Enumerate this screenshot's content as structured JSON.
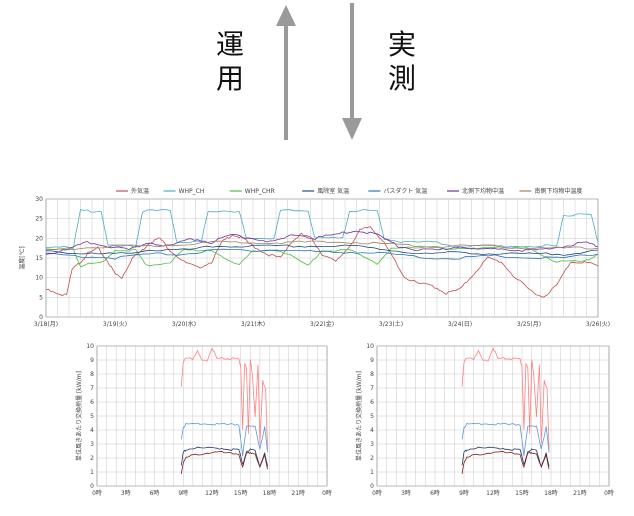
{
  "labels": {
    "unyo": "運用",
    "jissoku": "実測"
  },
  "colors": {
    "arrow": "#9a9a9a",
    "grid": "#c8c8c8",
    "axis": "#888888",
    "outdoor": "#c0504d",
    "whp_ch": "#4bacc6",
    "whp_chr": "#4bbf3f",
    "fuyo": "#1f4e79",
    "passduct": "#2e75b6",
    "north": "#7030a0",
    "south": "#a08060",
    "red_line": "#ff8080",
    "blue_line": "#5b9bd5",
    "dark_blue_line": "#1f3864",
    "dark_red_line": "#7f1d1d"
  },
  "chart_data": [
    {
      "type": "line",
      "title": "",
      "ylabel": "温度[℃]",
      "ylim": [
        0,
        30
      ],
      "yticks": [
        0,
        5,
        10,
        15,
        20,
        25,
        30
      ],
      "xlim": [
        0,
        8
      ],
      "x_tick_labels": [
        "3/18(月)",
        "3/19(火)",
        "3/20(水)",
        "3/21(木)",
        "3/22(金)",
        "3/23(土)",
        "3/24(日)",
        "3/25(月)",
        "3/26(火)"
      ],
      "legend_position": "top",
      "series": [
        {
          "name": "外気温",
          "color_key": "outdoor",
          "x": [
            0,
            0.2,
            0.3,
            0.38,
            0.5,
            0.6,
            0.75,
            0.9,
            1.0,
            1.1,
            1.25,
            1.4,
            1.5,
            1.65,
            1.8,
            2.0,
            2.2,
            2.4,
            2.55,
            2.7,
            2.85,
            3.0,
            3.2,
            3.4,
            3.55,
            3.7,
            3.85,
            4.0,
            4.2,
            4.4,
            4.55,
            4.7,
            4.85,
            5.0,
            5.2,
            5.4,
            5.6,
            5.8,
            6.0,
            6.2,
            6.4,
            6.6,
            6.8,
            7.0,
            7.2,
            7.4,
            7.6,
            7.8,
            8.0
          ],
          "y": [
            7,
            5.5,
            6,
            12,
            14,
            16,
            17.5,
            14,
            11,
            10,
            15,
            17,
            19,
            20,
            17,
            14,
            12.5,
            14,
            19,
            21,
            20,
            18,
            16,
            15,
            19,
            21,
            20,
            16,
            14,
            18,
            22,
            23,
            20,
            16,
            10,
            8.5,
            8,
            6,
            7,
            11,
            15,
            14,
            10,
            7,
            5,
            8,
            14,
            14,
            13
          ]
        },
        {
          "name": "WHP_CH",
          "color_key": "whp_ch",
          "x": [
            0,
            0.4,
            0.5,
            0.8,
            0.9,
            1.3,
            1.4,
            1.8,
            1.9,
            2.25,
            2.35,
            2.8,
            2.9,
            3.3,
            3.4,
            3.8,
            3.9,
            4.3,
            4.4,
            4.8,
            4.9,
            5.2,
            5.6,
            6.0,
            6.4,
            6.8,
            7.2,
            7.4,
            7.5,
            7.9,
            8.0
          ],
          "y": [
            18,
            18,
            27,
            27,
            18,
            18,
            27,
            27,
            19,
            19,
            27,
            27,
            20,
            20,
            27,
            27,
            20,
            20,
            27,
            27,
            20,
            19,
            19,
            18,
            18,
            18,
            18,
            18,
            26,
            26,
            19
          ]
        },
        {
          "name": "WHP_CHR",
          "color_key": "whp_chr",
          "x": [
            0,
            0.4,
            0.5,
            0.85,
            1.0,
            1.3,
            1.45,
            1.8,
            2.0,
            2.4,
            2.8,
            3.0,
            3.4,
            3.8,
            4.0,
            4.4,
            4.8,
            5.0,
            5.5,
            6.0,
            6.5,
            7.0,
            7.4,
            7.8,
            8.0
          ],
          "y": [
            17,
            17,
            13,
            14,
            17,
            17,
            13,
            14,
            17,
            17,
            13,
            17,
            17,
            13,
            17,
            17,
            13.5,
            17.5,
            17.5,
            17.5,
            17.5,
            17.5,
            14,
            14,
            16
          ]
        },
        {
          "name": "風除室 気温",
          "color_key": "fuyo",
          "x": [
            0,
            0.5,
            1.0,
            1.5,
            2.0,
            2.5,
            3.0,
            3.5,
            4.0,
            4.5,
            5.0,
            5.5,
            6.0,
            6.5,
            7.0,
            7.5,
            8.0
          ],
          "y": [
            17,
            16,
            16,
            17,
            17,
            18,
            18,
            18,
            18,
            18,
            17,
            16,
            16.5,
            16,
            16,
            16,
            17
          ]
        },
        {
          "name": "パスダクト 気温",
          "color_key": "passduct",
          "x": [
            0,
            0.5,
            1.0,
            1.5,
            2.0,
            2.5,
            3.0,
            3.5,
            4.0,
            4.5,
            5.0,
            5.5,
            6.0,
            6.5,
            7.0,
            7.5,
            8.0
          ],
          "y": [
            16,
            15.5,
            15,
            16,
            16,
            17,
            17,
            17,
            16.5,
            16.5,
            16,
            15,
            15,
            15.5,
            15,
            15,
            16
          ]
        },
        {
          "name": "北側下均物中温",
          "color_key": "north",
          "x": [
            0,
            0.3,
            0.6,
            0.9,
            1.2,
            1.5,
            1.8,
            2.1,
            2.4,
            2.7,
            3.0,
            3.3,
            3.6,
            3.9,
            4.2,
            4.5,
            4.8,
            5.1,
            5.4,
            5.7,
            6.0,
            6.3,
            6.6,
            6.9,
            7.2,
            7.5,
            7.8,
            8.0
          ],
          "y": [
            16,
            17,
            19,
            18,
            17,
            19,
            18,
            20,
            19,
            21,
            20,
            19,
            21,
            20,
            21,
            22,
            21,
            18,
            17,
            17,
            18,
            17,
            17.5,
            17,
            17,
            18,
            19,
            18
          ]
        },
        {
          "name": "南側下均物中温度",
          "color_key": "south",
          "x": [
            0,
            0.5,
            1.0,
            1.5,
            2.0,
            2.5,
            3.0,
            3.5,
            4.0,
            4.5,
            5.0,
            5.5,
            6.0,
            6.5,
            7.0,
            7.5,
            8.0
          ],
          "y": [
            17,
            17.5,
            18,
            18,
            18.5,
            19,
            19,
            19,
            19,
            19,
            18.5,
            18,
            18,
            18,
            17.5,
            17.5,
            17.5
          ]
        }
      ]
    },
    {
      "type": "line",
      "title": "",
      "ylabel": "単位風きあたり交換熱量 [kW/m]",
      "ylim": [
        0,
        10
      ],
      "yticks": [
        0,
        1,
        2,
        3,
        4,
        5,
        6,
        7,
        8,
        9,
        10
      ],
      "xlim": [
        0,
        24
      ],
      "x_tick_labels": [
        "0時",
        "3時",
        "6時",
        "9時",
        "12時",
        "15時",
        "18時",
        "21時",
        "0時"
      ],
      "series": [
        {
          "color_key": "red_line",
          "x": [
            8.8,
            9.0,
            9.3,
            10.0,
            10.5,
            11.0,
            11.5,
            12.0,
            12.5,
            13.0,
            13.5,
            14.0,
            14.5,
            14.8,
            15.0,
            15.2,
            15.4,
            15.6,
            15.8,
            16.0,
            16.2,
            16.5,
            16.8,
            17.0,
            17.3,
            17.6,
            17.8
          ],
          "y": [
            7.1,
            8.8,
            9.2,
            9.1,
            9.6,
            8.9,
            9.0,
            9.9,
            9.1,
            9.1,
            9.1,
            9.1,
            9.1,
            9.1,
            8.5,
            4.0,
            8.7,
            8.5,
            3.8,
            9.0,
            8.0,
            5.0,
            8.7,
            3.0,
            7.5,
            7.0,
            2.6
          ]
        },
        {
          "color_key": "blue_line",
          "x": [
            8.8,
            9.0,
            9.3,
            10.0,
            11.0,
            12.0,
            13.0,
            14.0,
            14.8,
            15.2,
            15.6,
            16.0,
            16.5,
            17.0,
            17.5,
            17.8
          ],
          "y": [
            3.4,
            4.2,
            4.4,
            4.4,
            4.5,
            4.4,
            4.4,
            4.4,
            4.4,
            2.2,
            4.2,
            4.3,
            4.3,
            2.6,
            4.2,
            2.4
          ]
        },
        {
          "color_key": "dark_blue_line",
          "x": [
            8.8,
            9.0,
            9.3,
            10.0,
            11.0,
            12.0,
            13.0,
            14.0,
            14.8,
            15.2,
            15.6,
            16.0,
            16.5,
            17.0,
            17.5,
            17.8
          ],
          "y": [
            1.4,
            2.4,
            2.6,
            2.7,
            2.7,
            2.7,
            2.7,
            2.6,
            2.6,
            1.5,
            2.5,
            2.6,
            2.5,
            1.4,
            2.4,
            1.4
          ]
        },
        {
          "color_key": "dark_red_line",
          "x": [
            8.8,
            9.0,
            9.3,
            10.0,
            11.0,
            12.0,
            13.0,
            14.0,
            14.8,
            15.2,
            15.6,
            16.0,
            16.5,
            17.0,
            17.5,
            17.8
          ],
          "y": [
            0.9,
            1.7,
            2.0,
            2.2,
            2.3,
            2.4,
            2.4,
            2.3,
            2.3,
            1.3,
            2.3,
            2.4,
            2.3,
            1.3,
            2.2,
            1.2
          ]
        }
      ]
    },
    {
      "type": "line",
      "title": "",
      "ylabel": "単位風きあたり交換熱量 [kW/m]",
      "ylim": [
        0,
        10
      ],
      "yticks": [
        0,
        1,
        2,
        3,
        4,
        5,
        6,
        7,
        8,
        9,
        10
      ],
      "xlim": [
        0,
        24
      ],
      "x_tick_labels": [
        "0時",
        "3時",
        "6時",
        "9時",
        "12時",
        "15時",
        "18時",
        "21時",
        "0時"
      ],
      "series": [
        {
          "color_key": "red_line",
          "x": [
            8.8,
            9.0,
            9.3,
            10.0,
            10.5,
            11.0,
            11.5,
            12.0,
            12.5,
            13.0,
            13.5,
            14.0,
            14.5,
            14.8,
            15.0,
            15.2,
            15.4,
            15.6,
            15.8,
            16.0,
            16.2,
            16.5,
            16.8,
            17.0,
            17.3,
            17.6,
            17.8
          ],
          "y": [
            7.1,
            8.8,
            9.2,
            9.1,
            9.6,
            8.9,
            9.0,
            9.9,
            9.1,
            9.1,
            9.1,
            9.1,
            9.1,
            9.1,
            8.5,
            4.0,
            8.7,
            8.5,
            3.8,
            9.0,
            8.0,
            5.0,
            8.7,
            3.0,
            7.5,
            7.0,
            2.6
          ]
        },
        {
          "color_key": "blue_line",
          "x": [
            8.8,
            9.0,
            9.3,
            10.0,
            11.0,
            12.0,
            13.0,
            14.0,
            14.8,
            15.2,
            15.6,
            16.0,
            16.5,
            17.0,
            17.5,
            17.8
          ],
          "y": [
            3.4,
            4.2,
            4.4,
            4.4,
            4.5,
            4.4,
            4.4,
            4.4,
            4.4,
            2.2,
            4.2,
            4.3,
            4.3,
            2.6,
            4.2,
            2.4
          ]
        },
        {
          "color_key": "dark_blue_line",
          "x": [
            8.8,
            9.0,
            9.3,
            10.0,
            11.0,
            12.0,
            13.0,
            14.0,
            14.8,
            15.2,
            15.6,
            16.0,
            16.5,
            17.0,
            17.5,
            17.8
          ],
          "y": [
            1.4,
            2.4,
            2.6,
            2.7,
            2.7,
            2.7,
            2.7,
            2.6,
            2.6,
            1.5,
            2.5,
            2.6,
            2.5,
            1.4,
            2.4,
            1.4
          ]
        },
        {
          "color_key": "dark_red_line",
          "x": [
            8.8,
            9.0,
            9.3,
            10.0,
            11.0,
            12.0,
            13.0,
            14.0,
            14.8,
            15.2,
            15.6,
            16.0,
            16.5,
            17.0,
            17.5,
            17.8
          ],
          "y": [
            0.9,
            1.7,
            2.0,
            2.2,
            2.3,
            2.4,
            2.4,
            2.3,
            2.3,
            1.3,
            2.3,
            2.4,
            2.3,
            1.3,
            2.2,
            1.2
          ]
        }
      ]
    }
  ]
}
